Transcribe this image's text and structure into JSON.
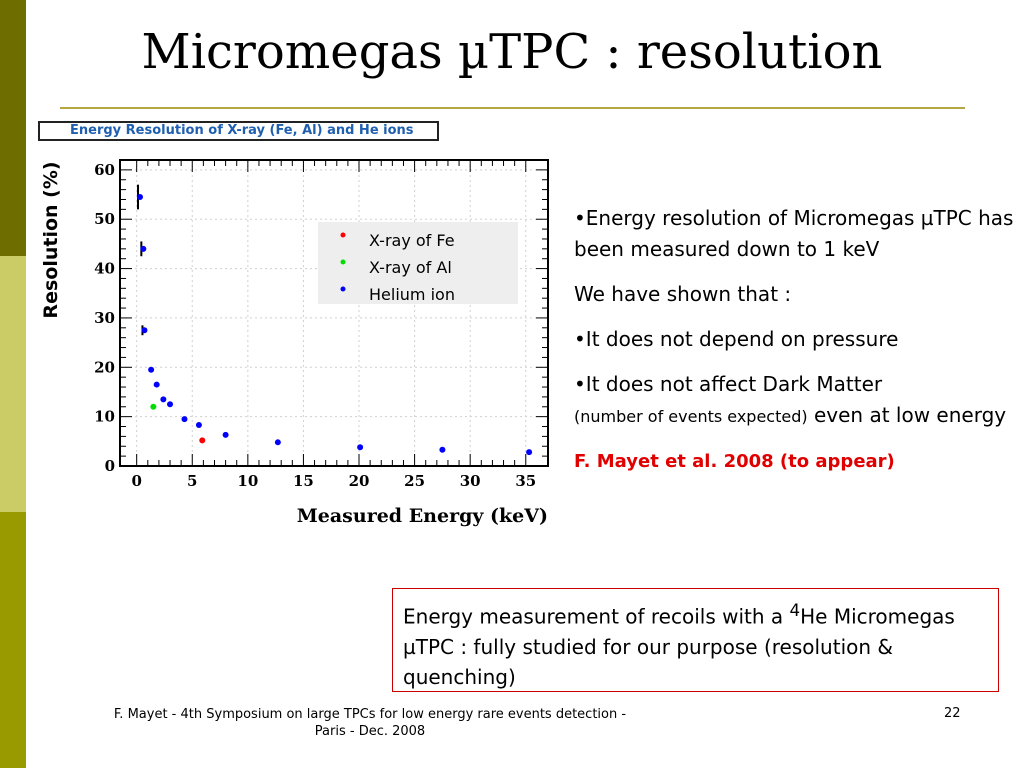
{
  "slide": {
    "title": "Micromegas µTPC : resolution",
    "page_number": "22",
    "footer": {
      "line1": "F. Mayet  - 4th Symposium on large TPCs  for low energy rare events detection -",
      "line2": "Paris - Dec. 2008"
    }
  },
  "colors": {
    "sidebar_dark": "#6e6e00",
    "sidebar_light": "#cccc66",
    "sidebar_mid": "#999900",
    "title_rule": "#b5a642",
    "chart_title": "#1f5fb0",
    "fe": "#ff0000",
    "al": "#00dd00",
    "he": "#0000ff",
    "reference": "#e00000",
    "note_border": "#cc0000"
  },
  "bullets": {
    "b1": "•Energy resolution of Micromegas µTPC has been measured down to 1 keV",
    "b2": "We have shown that :",
    "b3": "•It does not depend on pressure",
    "b4_main": "•It does not affect Dark Matter",
    "b4_small": "(number of events expected)",
    "b4_tail": "even at low energy",
    "reference": "F. Mayet et al. 2008 (to appear)"
  },
  "note": {
    "text_before_sup": "Energy measurement of recoils with a ",
    "sup": "4",
    "text_after_sup": "He Micromegas µTPC : fully studied for our purpose (resolution & quenching)"
  },
  "chart_data": {
    "type": "scatter",
    "title": "Energy Resolution of X-ray (Fe, Al) and He ions",
    "xlabel": "Measured Energy (keV)",
    "ylabel": "Resolution (%)",
    "xlim": [
      -1.5,
      37
    ],
    "ylim": [
      0,
      62
    ],
    "xticks": [
      0,
      5,
      10,
      15,
      20,
      25,
      30,
      35
    ],
    "yticks": [
      0,
      10,
      20,
      30,
      40,
      50,
      60
    ],
    "legend_position": "top-right",
    "grid": true,
    "series": [
      {
        "name": "X-ray of Fe",
        "color": "#ff0000",
        "points": [
          {
            "x": 5.9,
            "y": 5.2
          }
        ]
      },
      {
        "name": "X-ray of  Al",
        "color": "#00dd00",
        "points": [
          {
            "x": 1.5,
            "y": 12.0
          }
        ]
      },
      {
        "name": "Helium ion",
        "color": "#0000ff",
        "points": [
          {
            "x": 0.3,
            "y": 54.5,
            "err": 2.5
          },
          {
            "x": 0.6,
            "y": 44.0,
            "err": 1.5
          },
          {
            "x": 0.7,
            "y": 27.5,
            "err": 1.0
          },
          {
            "x": 1.3,
            "y": 19.5
          },
          {
            "x": 1.8,
            "y": 16.5
          },
          {
            "x": 2.4,
            "y": 13.5
          },
          {
            "x": 3.0,
            "y": 12.5
          },
          {
            "x": 4.3,
            "y": 9.5
          },
          {
            "x": 5.6,
            "y": 8.3
          },
          {
            "x": 8.0,
            "y": 6.3
          },
          {
            "x": 12.7,
            "y": 4.8
          },
          {
            "x": 20.1,
            "y": 3.8
          },
          {
            "x": 27.5,
            "y": 3.3
          },
          {
            "x": 35.3,
            "y": 2.8
          }
        ]
      }
    ]
  }
}
